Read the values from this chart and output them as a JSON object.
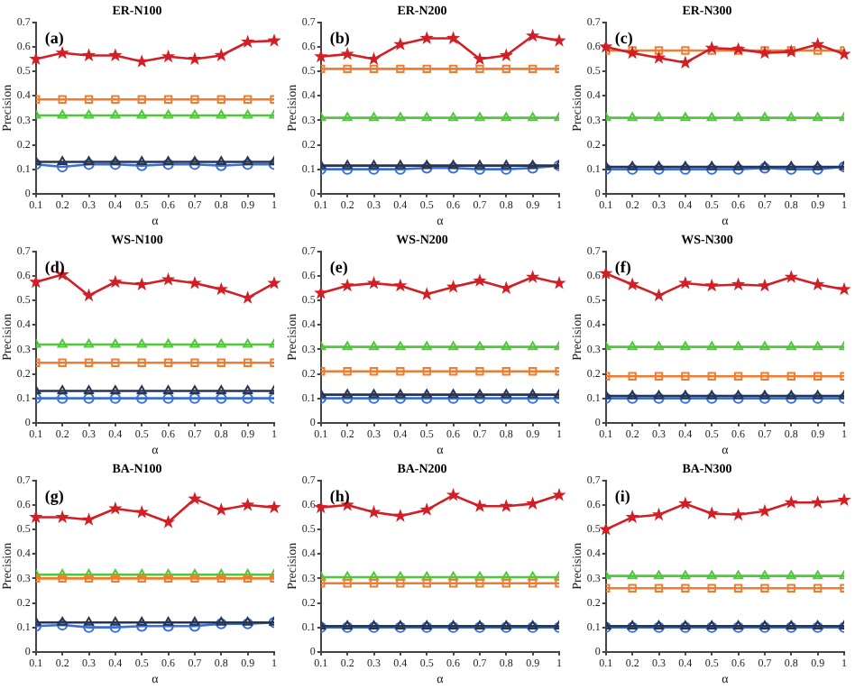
{
  "chart_data": [
    {
      "type": "line",
      "title": "ER-N100",
      "xlabel": "α",
      "ylabel": "Precision",
      "annotations": [
        "(a)"
      ],
      "x": [
        0.1,
        0.2,
        0.3,
        0.4,
        0.5,
        0.6,
        0.7,
        0.8,
        0.9,
        1
      ],
      "xlim": [
        0.1,
        1
      ],
      "xticks": [
        0.1,
        0.2,
        0.3,
        0.4,
        0.5,
        0.6,
        0.7,
        0.8,
        0.9,
        1
      ],
      "ylim": [
        0,
        0.7
      ],
      "yticks": [
        0,
        0.1,
        0.2,
        0.3,
        0.4,
        0.5,
        0.6,
        0.7
      ],
      "grid": false,
      "legend": false,
      "series": [
        {
          "color": "#d21f26",
          "marker": "star",
          "values": [
            0.55,
            0.575,
            0.565,
            0.565,
            0.54,
            0.56,
            0.55,
            0.565,
            0.62,
            0.625
          ]
        },
        {
          "color": "#ee7d32",
          "marker": "square",
          "values": [
            0.385,
            0.385,
            0.385,
            0.385,
            0.385,
            0.385,
            0.385,
            0.385,
            0.385,
            0.385
          ]
        },
        {
          "color": "#4fc83a",
          "marker": "triangle",
          "values": [
            0.32,
            0.32,
            0.32,
            0.32,
            0.32,
            0.32,
            0.32,
            0.32,
            0.32,
            0.32
          ]
        },
        {
          "color": "#283550",
          "marker": "triangle",
          "values": [
            0.13,
            0.13,
            0.13,
            0.13,
            0.13,
            0.13,
            0.13,
            0.13,
            0.13,
            0.13
          ]
        },
        {
          "color": "#3a6fd8",
          "marker": "circle",
          "values": [
            0.12,
            0.11,
            0.12,
            0.12,
            0.115,
            0.12,
            0.12,
            0.115,
            0.12,
            0.12
          ]
        }
      ]
    },
    {
      "type": "line",
      "title": "ER-N200",
      "xlabel": "α",
      "ylabel": "Precision",
      "annotations": [
        "(b)"
      ],
      "x": [
        0.1,
        0.2,
        0.3,
        0.4,
        0.5,
        0.6,
        0.7,
        0.8,
        0.9,
        1
      ],
      "xlim": [
        0.1,
        1
      ],
      "xticks": [
        0.1,
        0.2,
        0.3,
        0.4,
        0.5,
        0.6,
        0.7,
        0.8,
        0.9,
        1
      ],
      "ylim": [
        0,
        0.7
      ],
      "yticks": [
        0,
        0.1,
        0.2,
        0.3,
        0.4,
        0.5,
        0.6,
        0.7
      ],
      "grid": false,
      "legend": false,
      "series": [
        {
          "color": "#d21f26",
          "marker": "star",
          "values": [
            0.56,
            0.57,
            0.55,
            0.61,
            0.635,
            0.635,
            0.55,
            0.565,
            0.645,
            0.625
          ]
        },
        {
          "color": "#ee7d32",
          "marker": "square",
          "values": [
            0.51,
            0.51,
            0.51,
            0.51,
            0.51,
            0.51,
            0.51,
            0.51,
            0.51,
            0.51
          ]
        },
        {
          "color": "#4fc83a",
          "marker": "triangle",
          "values": [
            0.31,
            0.31,
            0.31,
            0.31,
            0.31,
            0.31,
            0.31,
            0.31,
            0.31,
            0.31
          ]
        },
        {
          "color": "#283550",
          "marker": "triangle",
          "values": [
            0.115,
            0.115,
            0.115,
            0.115,
            0.115,
            0.115,
            0.115,
            0.115,
            0.115,
            0.115
          ]
        },
        {
          "color": "#3a6fd8",
          "marker": "circle",
          "values": [
            0.1,
            0.1,
            0.1,
            0.1,
            0.105,
            0.105,
            0.1,
            0.1,
            0.105,
            0.115
          ]
        }
      ]
    },
    {
      "type": "line",
      "title": "ER-N300",
      "xlabel": "α",
      "ylabel": "Precision",
      "annotations": [
        "(c)"
      ],
      "x": [
        0.1,
        0.2,
        0.3,
        0.4,
        0.5,
        0.6,
        0.7,
        0.8,
        0.9,
        1
      ],
      "xlim": [
        0.1,
        1
      ],
      "xticks": [
        0.1,
        0.2,
        0.3,
        0.4,
        0.5,
        0.6,
        0.7,
        0.8,
        0.9,
        1
      ],
      "ylim": [
        0,
        0.7
      ],
      "yticks": [
        0,
        0.1,
        0.2,
        0.3,
        0.4,
        0.5,
        0.6,
        0.7
      ],
      "grid": false,
      "legend": false,
      "series": [
        {
          "color": "#d21f26",
          "marker": "star",
          "values": [
            0.6,
            0.575,
            0.555,
            0.535,
            0.595,
            0.59,
            0.575,
            0.58,
            0.61,
            0.57
          ]
        },
        {
          "color": "#ee7d32",
          "marker": "square",
          "values": [
            0.585,
            0.585,
            0.585,
            0.585,
            0.585,
            0.585,
            0.585,
            0.585,
            0.585,
            0.585
          ]
        },
        {
          "color": "#4fc83a",
          "marker": "triangle",
          "values": [
            0.31,
            0.31,
            0.31,
            0.31,
            0.31,
            0.31,
            0.31,
            0.31,
            0.31,
            0.31
          ]
        },
        {
          "color": "#283550",
          "marker": "triangle",
          "values": [
            0.11,
            0.11,
            0.11,
            0.11,
            0.11,
            0.11,
            0.11,
            0.11,
            0.11,
            0.11
          ]
        },
        {
          "color": "#3a6fd8",
          "marker": "circle",
          "values": [
            0.1,
            0.1,
            0.1,
            0.1,
            0.1,
            0.1,
            0.105,
            0.1,
            0.1,
            0.11
          ]
        }
      ]
    },
    {
      "type": "line",
      "title": "WS-N100",
      "xlabel": "α",
      "ylabel": "Precision",
      "annotations": [
        "(d)"
      ],
      "x": [
        0.1,
        0.2,
        0.3,
        0.4,
        0.5,
        0.6,
        0.7,
        0.8,
        0.9,
        1
      ],
      "xlim": [
        0.1,
        1
      ],
      "xticks": [
        0.1,
        0.2,
        0.3,
        0.4,
        0.5,
        0.6,
        0.7,
        0.8,
        0.9,
        1
      ],
      "ylim": [
        0,
        0.7
      ],
      "yticks": [
        0,
        0.1,
        0.2,
        0.3,
        0.4,
        0.5,
        0.6,
        0.7
      ],
      "grid": false,
      "legend": false,
      "series": [
        {
          "color": "#d21f26",
          "marker": "star",
          "values": [
            0.575,
            0.605,
            0.52,
            0.575,
            0.565,
            0.585,
            0.57,
            0.545,
            0.51,
            0.57
          ]
        },
        {
          "color": "#ee7d32",
          "marker": "square",
          "values": [
            0.245,
            0.245,
            0.245,
            0.245,
            0.245,
            0.245,
            0.245,
            0.245,
            0.245,
            0.245
          ]
        },
        {
          "color": "#4fc83a",
          "marker": "triangle",
          "values": [
            0.32,
            0.32,
            0.32,
            0.32,
            0.32,
            0.32,
            0.32,
            0.32,
            0.32,
            0.32
          ]
        },
        {
          "color": "#283550",
          "marker": "triangle",
          "values": [
            0.13,
            0.13,
            0.13,
            0.13,
            0.13,
            0.13,
            0.13,
            0.13,
            0.13,
            0.13
          ]
        },
        {
          "color": "#3a6fd8",
          "marker": "circle",
          "values": [
            0.1,
            0.1,
            0.1,
            0.1,
            0.1,
            0.1,
            0.1,
            0.1,
            0.1,
            0.1
          ]
        }
      ]
    },
    {
      "type": "line",
      "title": "WS-N200",
      "xlabel": "α",
      "ylabel": "Precision",
      "annotations": [
        "(e)"
      ],
      "x": [
        0.1,
        0.2,
        0.3,
        0.4,
        0.5,
        0.6,
        0.7,
        0.8,
        0.9,
        1
      ],
      "xlim": [
        0.1,
        1
      ],
      "xticks": [
        0.1,
        0.2,
        0.3,
        0.4,
        0.5,
        0.6,
        0.7,
        0.8,
        0.9,
        1
      ],
      "ylim": [
        0,
        0.7
      ],
      "yticks": [
        0,
        0.1,
        0.2,
        0.3,
        0.4,
        0.5,
        0.6,
        0.7
      ],
      "grid": false,
      "legend": false,
      "series": [
        {
          "color": "#d21f26",
          "marker": "star",
          "values": [
            0.53,
            0.56,
            0.57,
            0.56,
            0.525,
            0.555,
            0.58,
            0.55,
            0.595,
            0.57
          ]
        },
        {
          "color": "#ee7d32",
          "marker": "square",
          "values": [
            0.21,
            0.21,
            0.21,
            0.21,
            0.21,
            0.21,
            0.21,
            0.21,
            0.21,
            0.21
          ]
        },
        {
          "color": "#4fc83a",
          "marker": "triangle",
          "values": [
            0.31,
            0.31,
            0.31,
            0.31,
            0.31,
            0.31,
            0.31,
            0.31,
            0.31,
            0.31
          ]
        },
        {
          "color": "#283550",
          "marker": "triangle",
          "values": [
            0.115,
            0.115,
            0.115,
            0.115,
            0.115,
            0.115,
            0.115,
            0.115,
            0.115,
            0.115
          ]
        },
        {
          "color": "#3a6fd8",
          "marker": "circle",
          "values": [
            0.1,
            0.1,
            0.1,
            0.1,
            0.1,
            0.1,
            0.1,
            0.1,
            0.1,
            0.1
          ]
        }
      ]
    },
    {
      "type": "line",
      "title": "WS-N300",
      "xlabel": "α",
      "ylabel": "Precision",
      "annotations": [
        "(f)"
      ],
      "x": [
        0.1,
        0.2,
        0.3,
        0.4,
        0.5,
        0.6,
        0.7,
        0.8,
        0.9,
        1
      ],
      "xlim": [
        0.1,
        1
      ],
      "xticks": [
        0.1,
        0.2,
        0.3,
        0.4,
        0.5,
        0.6,
        0.7,
        0.8,
        0.9,
        1
      ],
      "ylim": [
        0,
        0.7
      ],
      "yticks": [
        0,
        0.1,
        0.2,
        0.3,
        0.4,
        0.5,
        0.6,
        0.7
      ],
      "grid": false,
      "legend": false,
      "series": [
        {
          "color": "#d21f26",
          "marker": "star",
          "values": [
            0.61,
            0.565,
            0.52,
            0.57,
            0.56,
            0.565,
            0.56,
            0.595,
            0.565,
            0.545
          ]
        },
        {
          "color": "#ee7d32",
          "marker": "square",
          "values": [
            0.19,
            0.19,
            0.19,
            0.19,
            0.19,
            0.19,
            0.19,
            0.19,
            0.19,
            0.19
          ]
        },
        {
          "color": "#4fc83a",
          "marker": "triangle",
          "values": [
            0.31,
            0.31,
            0.31,
            0.31,
            0.31,
            0.31,
            0.31,
            0.31,
            0.31,
            0.31
          ]
        },
        {
          "color": "#283550",
          "marker": "triangle",
          "values": [
            0.11,
            0.11,
            0.11,
            0.11,
            0.11,
            0.11,
            0.11,
            0.11,
            0.11,
            0.11
          ]
        },
        {
          "color": "#3a6fd8",
          "marker": "circle",
          "values": [
            0.1,
            0.1,
            0.1,
            0.1,
            0.1,
            0.1,
            0.1,
            0.1,
            0.1,
            0.1
          ]
        }
      ]
    },
    {
      "type": "line",
      "title": "BA-N100",
      "xlabel": "α",
      "ylabel": "Precision",
      "annotations": [
        "(g)"
      ],
      "x": [
        0.1,
        0.2,
        0.3,
        0.4,
        0.5,
        0.6,
        0.7,
        0.8,
        0.9,
        1
      ],
      "xlim": [
        0.1,
        1
      ],
      "xticks": [
        0.1,
        0.2,
        0.3,
        0.4,
        0.5,
        0.6,
        0.7,
        0.8,
        0.9,
        1
      ],
      "ylim": [
        0,
        0.7
      ],
      "yticks": [
        0,
        0.1,
        0.2,
        0.3,
        0.4,
        0.5,
        0.6,
        0.7
      ],
      "grid": false,
      "legend": false,
      "series": [
        {
          "color": "#d21f26",
          "marker": "star",
          "values": [
            0.55,
            0.55,
            0.54,
            0.585,
            0.57,
            0.53,
            0.625,
            0.58,
            0.6,
            0.59
          ]
        },
        {
          "color": "#ee7d32",
          "marker": "square",
          "values": [
            0.3,
            0.3,
            0.3,
            0.3,
            0.3,
            0.3,
            0.3,
            0.3,
            0.3,
            0.3
          ]
        },
        {
          "color": "#4fc83a",
          "marker": "triangle",
          "values": [
            0.315,
            0.315,
            0.315,
            0.315,
            0.315,
            0.315,
            0.315,
            0.315,
            0.315,
            0.315
          ]
        },
        {
          "color": "#283550",
          "marker": "triangle",
          "values": [
            0.12,
            0.12,
            0.12,
            0.12,
            0.12,
            0.12,
            0.12,
            0.12,
            0.12,
            0.12
          ]
        },
        {
          "color": "#3a6fd8",
          "marker": "circle",
          "values": [
            0.105,
            0.11,
            0.1,
            0.1,
            0.105,
            0.105,
            0.105,
            0.115,
            0.115,
            0.12
          ]
        }
      ]
    },
    {
      "type": "line",
      "title": "BA-N200",
      "xlabel": "α",
      "ylabel": "Precision",
      "annotations": [
        "(h)"
      ],
      "x": [
        0.1,
        0.2,
        0.3,
        0.4,
        0.5,
        0.6,
        0.7,
        0.8,
        0.9,
        1
      ],
      "xlim": [
        0.1,
        1
      ],
      "xticks": [
        0.1,
        0.2,
        0.3,
        0.4,
        0.5,
        0.6,
        0.7,
        0.8,
        0.9,
        1
      ],
      "ylim": [
        0,
        0.7
      ],
      "yticks": [
        0,
        0.1,
        0.2,
        0.3,
        0.4,
        0.5,
        0.6,
        0.7
      ],
      "grid": false,
      "legend": false,
      "series": [
        {
          "color": "#d21f26",
          "marker": "star",
          "values": [
            0.59,
            0.6,
            0.57,
            0.555,
            0.58,
            0.64,
            0.595,
            0.595,
            0.605,
            0.64
          ]
        },
        {
          "color": "#ee7d32",
          "marker": "square",
          "values": [
            0.28,
            0.28,
            0.28,
            0.28,
            0.28,
            0.28,
            0.28,
            0.28,
            0.28,
            0.28
          ]
        },
        {
          "color": "#4fc83a",
          "marker": "triangle",
          "values": [
            0.305,
            0.305,
            0.305,
            0.305,
            0.305,
            0.305,
            0.305,
            0.305,
            0.305,
            0.305
          ]
        },
        {
          "color": "#283550",
          "marker": "triangle",
          "values": [
            0.105,
            0.105,
            0.105,
            0.105,
            0.105,
            0.105,
            0.105,
            0.105,
            0.105,
            0.105
          ]
        },
        {
          "color": "#3a6fd8",
          "marker": "circle",
          "values": [
            0.1,
            0.1,
            0.1,
            0.1,
            0.1,
            0.1,
            0.1,
            0.1,
            0.1,
            0.1
          ]
        }
      ]
    },
    {
      "type": "line",
      "title": "BA-N300",
      "xlabel": "α",
      "ylabel": "Precision",
      "annotations": [
        "(i)"
      ],
      "x": [
        0.1,
        0.2,
        0.3,
        0.4,
        0.5,
        0.6,
        0.7,
        0.8,
        0.9,
        1
      ],
      "xlim": [
        0.1,
        1
      ],
      "xticks": [
        0.1,
        0.2,
        0.3,
        0.4,
        0.5,
        0.6,
        0.7,
        0.8,
        0.9,
        1
      ],
      "ylim": [
        0,
        0.7
      ],
      "yticks": [
        0,
        0.1,
        0.2,
        0.3,
        0.4,
        0.5,
        0.6,
        0.7
      ],
      "grid": false,
      "legend": false,
      "series": [
        {
          "color": "#d21f26",
          "marker": "star",
          "values": [
            0.5,
            0.55,
            0.56,
            0.605,
            0.565,
            0.56,
            0.575,
            0.61,
            0.61,
            0.62
          ]
        },
        {
          "color": "#ee7d32",
          "marker": "square",
          "values": [
            0.26,
            0.26,
            0.26,
            0.26,
            0.26,
            0.26,
            0.26,
            0.26,
            0.26,
            0.26
          ]
        },
        {
          "color": "#4fc83a",
          "marker": "triangle",
          "values": [
            0.31,
            0.31,
            0.31,
            0.31,
            0.31,
            0.31,
            0.31,
            0.31,
            0.31,
            0.31
          ]
        },
        {
          "color": "#283550",
          "marker": "triangle",
          "values": [
            0.105,
            0.105,
            0.105,
            0.105,
            0.105,
            0.105,
            0.105,
            0.105,
            0.105,
            0.105
          ]
        },
        {
          "color": "#3a6fd8",
          "marker": "circle",
          "values": [
            0.1,
            0.1,
            0.1,
            0.1,
            0.1,
            0.1,
            0.1,
            0.1,
            0.1,
            0.1
          ]
        }
      ]
    }
  ]
}
